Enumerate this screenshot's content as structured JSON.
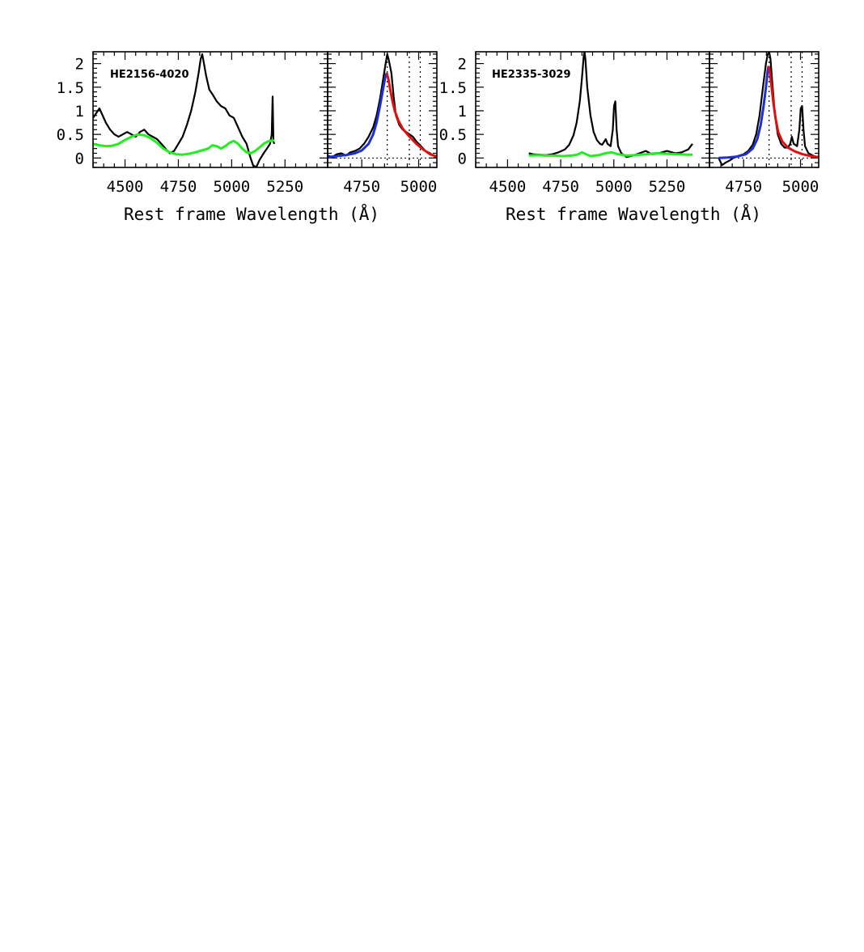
{
  "figure": {
    "panels": [
      {
        "object_label": "HE2156-4020",
        "xlabel": "Rest frame Wavelength (Å)"
      },
      {
        "object_label": "HE2335-3029",
        "xlabel": "Rest frame Wavelength (Å)"
      }
    ]
  },
  "chart_data": [
    {
      "type": "line",
      "title": "",
      "object_label": "HE2156-4020",
      "panel": "full spectrum",
      "xlabel": "Rest frame Wavelength (Å)",
      "ylabel": "",
      "xlim": [
        4350,
        5450
      ],
      "ylim": [
        -0.2,
        2.25
      ],
      "xticks": [
        4500,
        4750,
        5000,
        5250
      ],
      "yticks": [
        0,
        0.5,
        1,
        1.5,
        2
      ],
      "ytick_labels": [
        "0",
        "0.5",
        "1",
        "1.5",
        "2"
      ],
      "series": [
        {
          "color": "#000000",
          "x": [
            4350,
            4365,
            4380,
            4395,
            4410,
            4430,
            4450,
            4470,
            4490,
            4510,
            4530,
            4550,
            4570,
            4590,
            4610,
            4630,
            4650,
            4670,
            4690,
            4710,
            4730,
            4750,
            4770,
            4790,
            4810,
            4830,
            4845,
            4855,
            4862,
            4870,
            4880,
            4895,
            4910,
            4930,
            4950,
            4970,
            4990,
            5010,
            5030,
            5050,
            5070,
            5085,
            5100,
            5115,
            5130,
            5150,
            5165,
            5180,
            5188,
            5192,
            5196,
            5200
          ],
          "y": [
            0.85,
            0.95,
            1.05,
            0.9,
            0.75,
            0.6,
            0.5,
            0.45,
            0.5,
            0.55,
            0.5,
            0.45,
            0.55,
            0.6,
            0.5,
            0.45,
            0.4,
            0.3,
            0.2,
            0.1,
            0.15,
            0.3,
            0.45,
            0.7,
            1.0,
            1.4,
            1.8,
            2.1,
            2.2,
            2.0,
            1.75,
            1.45,
            1.35,
            1.2,
            1.1,
            1.05,
            0.9,
            0.85,
            0.65,
            0.45,
            0.3,
            0.05,
            -0.15,
            -0.2,
            -0.05,
            0.1,
            0.2,
            0.3,
            0.5,
            1.3,
            0.35,
            0.3
          ]
        },
        {
          "color": "#22ee22",
          "x": [
            4350,
            4380,
            4410,
            4440,
            4470,
            4500,
            4530,
            4560,
            4590,
            4620,
            4650,
            4680,
            4710,
            4740,
            4770,
            4800,
            4830,
            4860,
            4890,
            4910,
            4930,
            4950,
            4970,
            4990,
            5010,
            5030,
            5050,
            5070,
            5090,
            5110,
            5130,
            5150,
            5170,
            5190,
            5200
          ],
          "y": [
            0.3,
            0.27,
            0.25,
            0.26,
            0.3,
            0.38,
            0.45,
            0.5,
            0.48,
            0.42,
            0.32,
            0.2,
            0.12,
            0.08,
            0.07,
            0.09,
            0.12,
            0.16,
            0.2,
            0.27,
            0.25,
            0.2,
            0.25,
            0.32,
            0.36,
            0.3,
            0.2,
            0.12,
            0.1,
            0.15,
            0.22,
            0.3,
            0.35,
            0.37,
            0.37
          ]
        }
      ]
    },
    {
      "type": "line",
      "title": "",
      "object_label": "HE2156-4020",
      "panel": "H-beta fit",
      "xlabel": "",
      "ylabel": "",
      "xlim": [
        4600,
        5080
      ],
      "ylim": [
        -0.2,
        2.25
      ],
      "xticks": [
        4750,
        5000
      ],
      "yticks": [
        0,
        0.5,
        1,
        1.5,
        2
      ],
      "vlines": [
        4862,
        4959,
        5007
      ],
      "hline": 0,
      "series": [
        {
          "color": "#000000",
          "x": [
            4600,
            4620,
            4640,
            4660,
            4680,
            4700,
            4720,
            4740,
            4760,
            4780,
            4800,
            4815,
            4830,
            4845,
            4855,
            4862,
            4870,
            4880,
            4890,
            4900,
            4915,
            4930,
            4945,
            4960,
            4975,
            4990,
            5010,
            5030,
            5050,
            5080
          ],
          "y": [
            0.05,
            0.02,
            0.08,
            0.1,
            0.05,
            0.12,
            0.15,
            0.2,
            0.3,
            0.45,
            0.65,
            0.9,
            1.25,
            1.7,
            2.0,
            2.2,
            2.05,
            1.8,
            1.3,
            0.9,
            0.7,
            0.6,
            0.55,
            0.5,
            0.45,
            0.35,
            0.25,
            0.15,
            0.1,
            0.0
          ]
        },
        {
          "color": "#1f2fd0",
          "x": [
            4600,
            4640,
            4680,
            4720,
            4750,
            4780,
            4800,
            4815,
            4830,
            4845,
            4855,
            4860
          ],
          "y": [
            0.02,
            0.04,
            0.06,
            0.1,
            0.16,
            0.3,
            0.5,
            0.75,
            1.1,
            1.5,
            1.75,
            1.8
          ]
        },
        {
          "color": "#e01010",
          "x": [
            4860,
            4868,
            4875,
            4885,
            4895,
            4910,
            4930,
            4960,
            4990,
            5020,
            5050,
            5080
          ],
          "y": [
            1.8,
            1.65,
            1.45,
            1.2,
            1.0,
            0.8,
            0.62,
            0.45,
            0.3,
            0.18,
            0.08,
            0.03
          ]
        }
      ]
    },
    {
      "type": "line",
      "title": "",
      "object_label": "HE2335-3029",
      "panel": "full spectrum",
      "xlabel": "Rest frame Wavelength (Å)",
      "ylabel": "",
      "xlim": [
        4350,
        5450
      ],
      "ylim": [
        -0.2,
        2.25
      ],
      "xticks": [
        4500,
        4750,
        5000,
        5250
      ],
      "yticks": [
        0,
        0.5,
        1,
        1.5,
        2
      ],
      "ytick_labels": [
        "0",
        "0.5",
        "1",
        "1.5",
        "2"
      ],
      "series": [
        {
          "color": "#000000",
          "x": [
            4600,
            4620,
            4650,
            4680,
            4710,
            4740,
            4770,
            4790,
            4810,
            4825,
            4840,
            4850,
            4858,
            4862,
            4866,
            4875,
            4890,
            4905,
            4920,
            4935,
            4945,
            4955,
            4962,
            4970,
            4985,
            4995,
            5001,
            5007,
            5013,
            5020,
            5035,
            5060,
            5090,
            5120,
            5150,
            5180,
            5210,
            5250,
            5290,
            5320,
            5350,
            5370
          ],
          "y": [
            0.1,
            0.08,
            0.07,
            0.06,
            0.08,
            0.12,
            0.18,
            0.28,
            0.48,
            0.75,
            1.2,
            1.7,
            2.15,
            2.25,
            2.1,
            1.5,
            0.9,
            0.55,
            0.38,
            0.3,
            0.28,
            0.35,
            0.4,
            0.3,
            0.25,
            0.6,
            1.1,
            1.2,
            0.6,
            0.25,
            0.1,
            0.02,
            0.05,
            0.1,
            0.15,
            0.08,
            0.1,
            0.15,
            0.1,
            0.12,
            0.18,
            0.3
          ]
        },
        {
          "color": "#22ee22",
          "x": [
            4600,
            4640,
            4680,
            4720,
            4760,
            4800,
            4830,
            4850,
            4870,
            4890,
            4930,
            4960,
            4990,
            5020,
            5060,
            5100,
            5150,
            5200,
            5250,
            5300,
            5350,
            5370
          ],
          "y": [
            0.05,
            0.06,
            0.05,
            0.05,
            0.04,
            0.05,
            0.07,
            0.12,
            0.08,
            0.04,
            0.06,
            0.1,
            0.12,
            0.08,
            0.05,
            0.06,
            0.08,
            0.1,
            0.09,
            0.08,
            0.07,
            0.07
          ]
        }
      ]
    },
    {
      "type": "line",
      "title": "",
      "object_label": "HE2335-3029",
      "panel": "H-beta fit",
      "xlabel": "",
      "ylabel": "",
      "xlim": [
        4600,
        5080
      ],
      "ylim": [
        -0.2,
        2.25
      ],
      "xticks": [
        4750,
        5000
      ],
      "yticks": [
        0,
        0.5,
        1,
        1.5,
        2
      ],
      "vlines": [
        4862,
        4959,
        5007
      ],
      "hline": 0,
      "series": [
        {
          "color": "#000000",
          "x": [
            4640,
            4655,
            4670,
            4690,
            4710,
            4730,
            4750,
            4770,
            4790,
            4805,
            4820,
            4835,
            4848,
            4856,
            4862,
            4868,
            4876,
            4888,
            4900,
            4915,
            4930,
            4945,
            4955,
            4962,
            4970,
            4985,
            4995,
            5001,
            5007,
            5013,
            5020,
            5035,
            5055,
            5080
          ],
          "y": [
            0.0,
            -0.15,
            -0.1,
            -0.05,
            0.02,
            0.05,
            0.08,
            0.15,
            0.28,
            0.5,
            0.9,
            1.5,
            2.0,
            2.2,
            2.25,
            2.1,
            1.6,
            0.9,
            0.5,
            0.3,
            0.22,
            0.22,
            0.3,
            0.45,
            0.3,
            0.25,
            0.6,
            1.05,
            1.1,
            0.6,
            0.25,
            0.1,
            0.05,
            0.0
          ]
        },
        {
          "color": "#1f2fd0",
          "x": [
            4640,
            4680,
            4720,
            4760,
            4790,
            4810,
            4825,
            4838,
            4848,
            4856,
            4860
          ],
          "y": [
            0.0,
            0.01,
            0.03,
            0.08,
            0.2,
            0.4,
            0.7,
            1.1,
            1.5,
            1.85,
            1.95
          ]
        },
        {
          "color": "#e01010",
          "x": [
            4860,
            4866,
            4872,
            4880,
            4890,
            4902,
            4920,
            4945,
            4975,
            5010,
            5045,
            5080
          ],
          "y": [
            1.95,
            1.8,
            1.55,
            1.2,
            0.85,
            0.55,
            0.35,
            0.22,
            0.14,
            0.08,
            0.04,
            0.02
          ]
        }
      ]
    }
  ]
}
